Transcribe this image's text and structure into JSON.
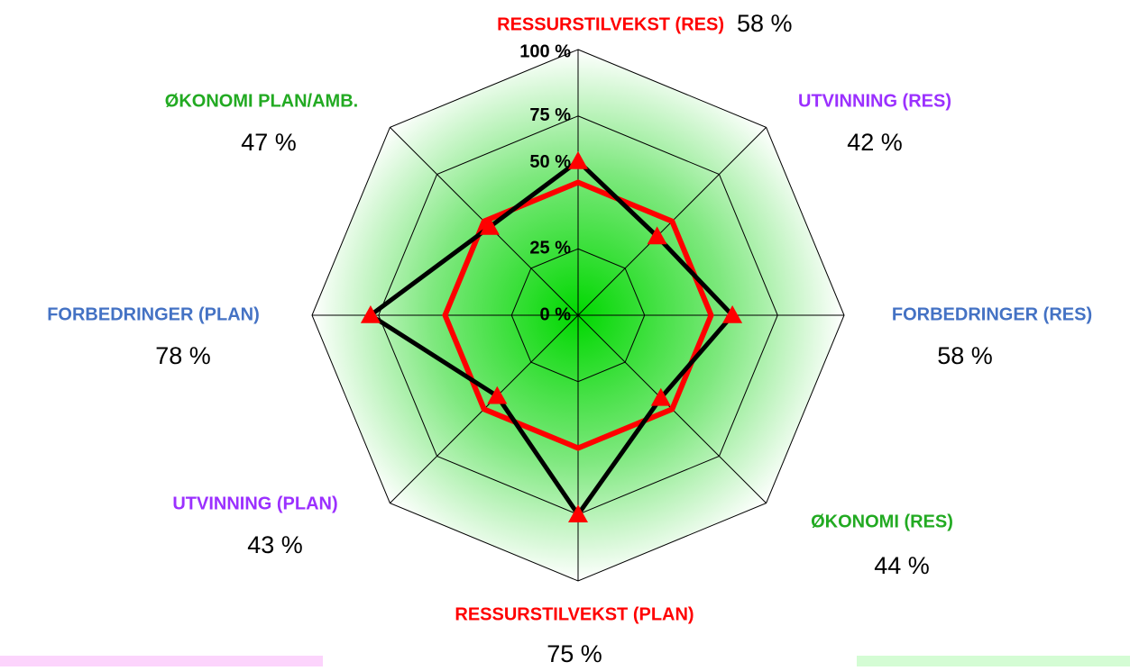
{
  "chart_data": {
    "type": "radar",
    "categories": [
      "RESSURSTILVEKST (RES)",
      "UTVINNING (RES)",
      "FORBEDRINGER (RES)",
      "ØKONOMI (RES)",
      "RESSURSTILVEKST (PLAN)",
      "UTVINNING (PLAN)",
      "FORBEDRINGER (PLAN)",
      "ØKONOMI PLAN/AMB."
    ],
    "category_colors": [
      "#ff0000",
      "#9b30ff",
      "#4472c4",
      "#22aa22",
      "#ff0000",
      "#9b30ff",
      "#4472c4",
      "#22aa22"
    ],
    "series": [
      {
        "color": "#ff0000",
        "values": [
          50,
          50,
          50,
          50,
          50,
          50,
          50,
          50
        ]
      },
      {
        "color": "#000000",
        "marker_color": "#ff0000",
        "values": [
          58,
          42,
          58,
          44,
          75,
          43,
          78,
          47
        ],
        "value_labels": [
          "58 %",
          "42 %",
          "58 %",
          "44 %",
          "75 %",
          "43 %",
          "78 %",
          "47 %"
        ]
      }
    ],
    "ylim": [
      0,
      100
    ],
    "yticks": [
      {
        "value": 0,
        "label": "0 %"
      },
      {
        "value": 25,
        "label": "25 %"
      },
      {
        "value": 50,
        "label": "50 %"
      },
      {
        "value": 75,
        "label": "75 %"
      },
      {
        "value": 100,
        "label": "100 %"
      }
    ],
    "grid": true
  }
}
